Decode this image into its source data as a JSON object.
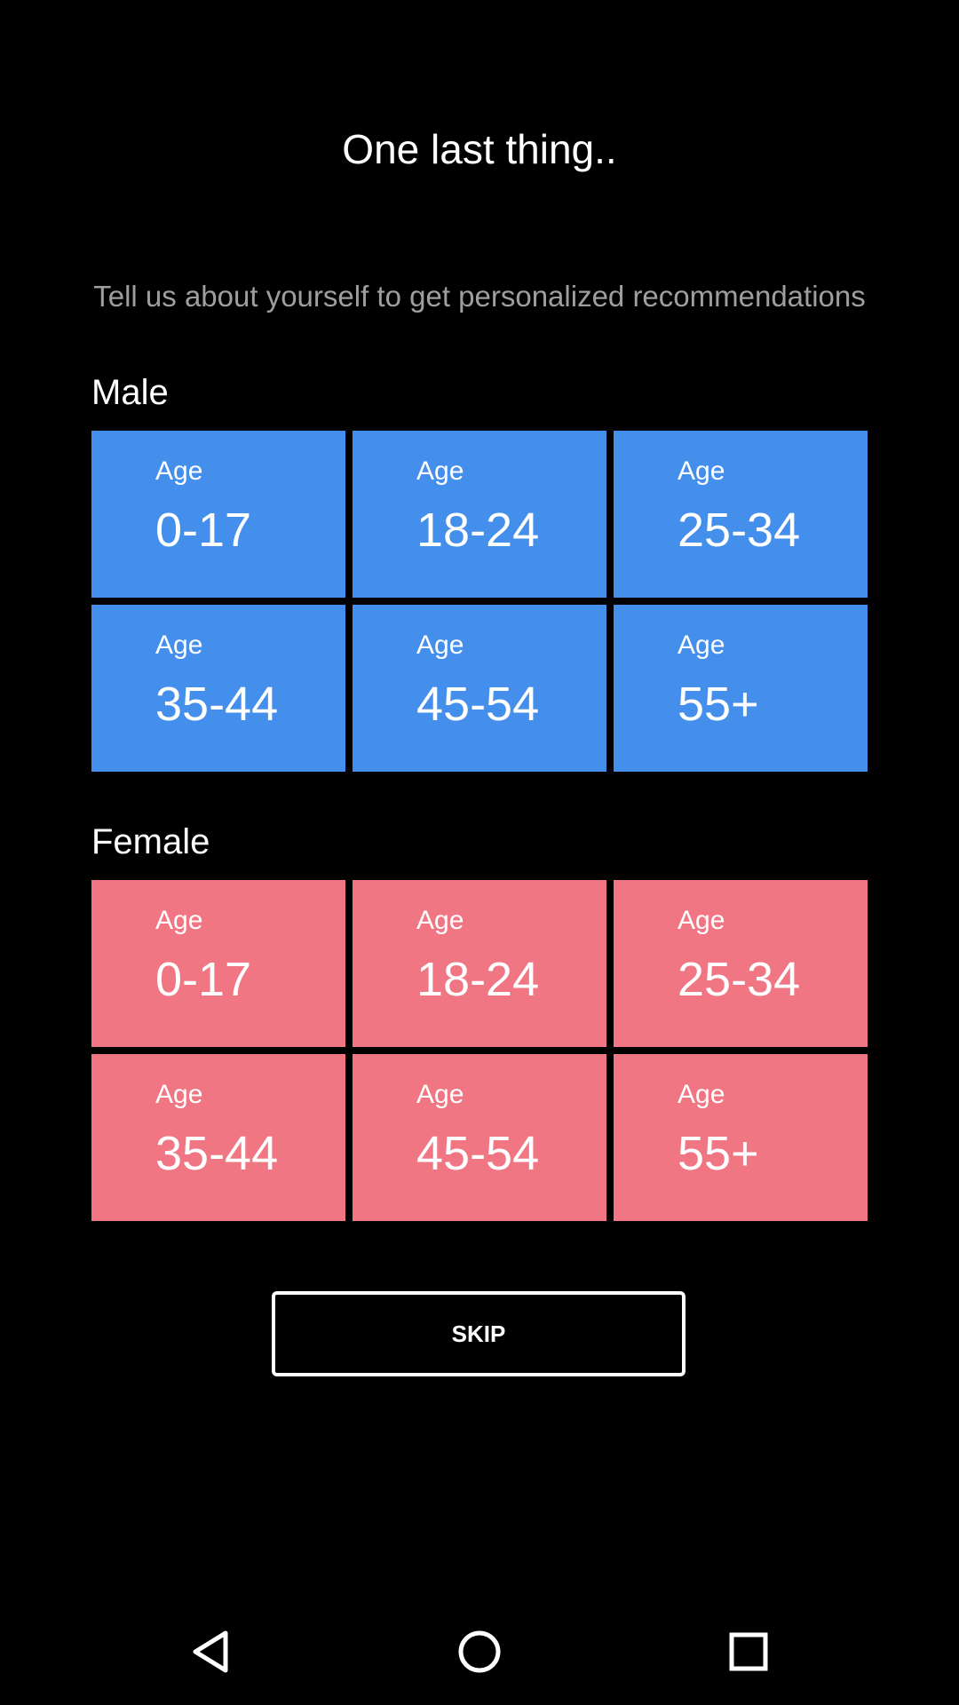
{
  "header": {
    "title": "One last thing..",
    "subtitle": "Tell us about yourself to get personalized recommendations"
  },
  "sections": {
    "male": {
      "label": "Male",
      "color": "#448fec",
      "tiles": [
        {
          "prefix": "Age",
          "range": "0-17"
        },
        {
          "prefix": "Age",
          "range": "18-24"
        },
        {
          "prefix": "Age",
          "range": "25-34"
        },
        {
          "prefix": "Age",
          "range": "35-44"
        },
        {
          "prefix": "Age",
          "range": "45-54"
        },
        {
          "prefix": "Age",
          "range": "55+"
        }
      ]
    },
    "female": {
      "label": "Female",
      "color": "#f07683",
      "tiles": [
        {
          "prefix": "Age",
          "range": "0-17"
        },
        {
          "prefix": "Age",
          "range": "18-24"
        },
        {
          "prefix": "Age",
          "range": "25-34"
        },
        {
          "prefix": "Age",
          "range": "35-44"
        },
        {
          "prefix": "Age",
          "range": "45-54"
        },
        {
          "prefix": "Age",
          "range": "55+"
        }
      ]
    }
  },
  "footer": {
    "skip_label": "SKIP"
  },
  "navbar": {
    "icons": [
      "back-icon",
      "home-icon",
      "recents-icon"
    ]
  }
}
